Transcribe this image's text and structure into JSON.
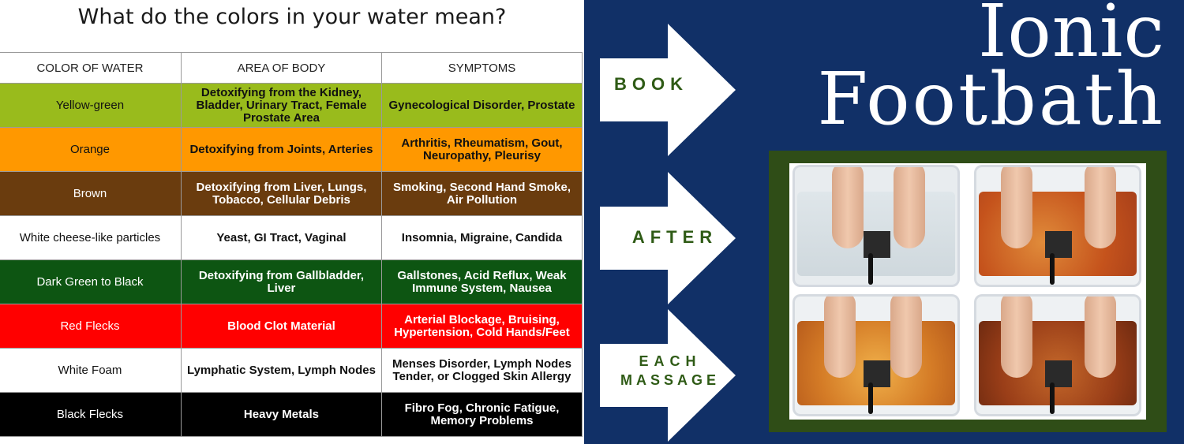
{
  "title": "What do the colors in your water mean?",
  "table": {
    "headers": [
      "COLOR OF WATER",
      "AREA OF BODY",
      "SYMPTOMS"
    ],
    "rows": [
      {
        "color": "Yellow-green",
        "area": "Detoxifying from the Kidney, Bladder, Urinary Tract, Female Prostate Area",
        "symptoms": "Gynecological Disorder, Prostate",
        "bg": "#99bb1c",
        "fg": "#111111"
      },
      {
        "color": "Orange",
        "area": "Detoxifying from Joints, Arteries",
        "symptoms": "Arthritis, Rheumatism, Gout, Neuropathy, Pleurisy",
        "bg": "#ff9800",
        "fg": "#111111"
      },
      {
        "color": "Brown",
        "area": "Detoxifying from Liver, Lungs, Tobacco, Cellular Debris",
        "symptoms": "Smoking, Second Hand Smoke, Air Pollution",
        "bg": "#6a3c0e",
        "fg": "#ffffff"
      },
      {
        "color": "White cheese-like particles",
        "area": "Yeast, GI Tract, Vaginal",
        "symptoms": "Insomnia, Migraine, Candida",
        "bg": "#ffffff",
        "fg": "#111111"
      },
      {
        "color": "Dark Green to Black",
        "area": "Detoxifying from Gallbladder, Liver",
        "symptoms": "Gallstones, Acid Reflux, Weak Immune System, Nausea",
        "bg": "#0d5512",
        "fg": "#ffffff"
      },
      {
        "color": "Red Flecks",
        "area": "Blood Clot Material",
        "symptoms": "Arterial Blockage, Bruising, Hypertension, Cold Hands/Feet",
        "bg": "#ff0000",
        "fg": "#ffffff"
      },
      {
        "color": "White Foam",
        "area": "Lymphatic System, Lymph Nodes",
        "symptoms": "Menses Disorder, Lymph Nodes Tender, or Clogged Skin Allergy",
        "bg": "#ffffff",
        "fg": "#111111"
      },
      {
        "color": "Black Flecks",
        "area": "Heavy Metals",
        "symptoms": "Fibro Fog, Chronic Fatigue, Memory Problems",
        "bg": "#000000",
        "fg": "#ffffff"
      }
    ]
  },
  "arrows": {
    "book": "BOOK",
    "after": "AFTER",
    "each": "EACH",
    "massage": "MASSAGE"
  },
  "brand": {
    "line1": "Ionic",
    "line2": "Footbath"
  },
  "colors": {
    "navy": "#113067",
    "frame_green": "#2f4d17",
    "label_green": "#2f5b16"
  },
  "photo_icons": [
    "footbath-before-tub",
    "footbath-orange-tub-1",
    "footbath-orange-tub-2",
    "footbath-dark-tub"
  ]
}
